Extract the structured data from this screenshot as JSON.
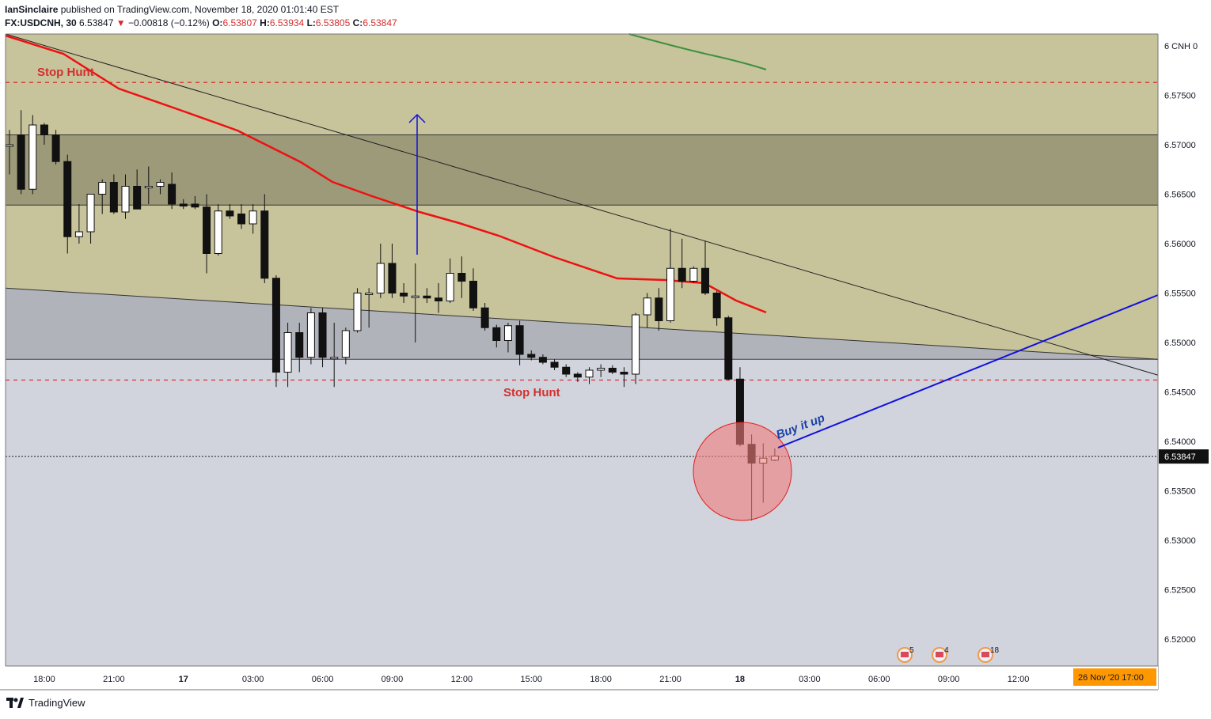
{
  "header": {
    "author": "IanSinclaire",
    "published_text": "published on TradingView.com, November 18, 2020 01:01:40 EST",
    "symbol": "FX:USDCNH, 30",
    "last_price": "6.53847",
    "change_arrow": "▼",
    "change": "−0.00818 (−0.12%)",
    "open_label": "O:",
    "open": "6.53807",
    "high_label": "H:",
    "high": "6.53934",
    "low_label": "L:",
    "low": "6.53805",
    "close_label": "C:",
    "close": "6.53847"
  },
  "footer": {
    "brand": "TradingView"
  },
  "colors": {
    "pane_bg": "#d1d4dc",
    "zone_upper": "#c7c39b",
    "zone_dark": "#9d9a7a",
    "zone_grey": "#b1b3bb",
    "ema_red": "#ee1111",
    "ema_green": "#3d9140",
    "blue_line": "#1111dd",
    "stop_hunt_red": "#d32f2f",
    "circle_fill": "#f07c7c",
    "date_tag_bg": "#ff9800"
  },
  "chart_data": {
    "type": "candlestick",
    "title": "FX:USDCNH, 30",
    "ylim": [
      6.515,
      6.581
    ],
    "y_ticks": [
      "6 CNH 0",
      "6.57500",
      "6.57000",
      "6.56500",
      "6.56000",
      "6.55500",
      "6.55000",
      "6.54500",
      "6.54000",
      "6.53500",
      "6.53000",
      "6.52500",
      "6.52000"
    ],
    "y_tick_values": [
      6.58,
      6.575,
      6.57,
      6.565,
      6.56,
      6.555,
      6.55,
      6.545,
      6.54,
      6.535,
      6.53,
      6.525,
      6.52
    ],
    "x_ticks": [
      "18:00",
      "21:00",
      "17",
      "03:00",
      "06:00",
      "09:00",
      "12:00",
      "15:00",
      "18:00",
      "21:00",
      "18",
      "03:00",
      "06:00",
      "09:00",
      "12:00"
    ],
    "x_tick_index": [
      3,
      9,
      15,
      21,
      27,
      33,
      39,
      45,
      51,
      57,
      63,
      69,
      75,
      81,
      87
    ],
    "current_price_label": "6.53847",
    "current_price": 6.53847,
    "date_tag": "26 Nov '20   17:00",
    "candles": [
      {
        "o": 6.57,
        "h": 6.5715,
        "l": 6.567,
        "c": 6.57
      },
      {
        "o": 6.571,
        "h": 6.5735,
        "l": 6.565,
        "c": 6.5655
      },
      {
        "o": 6.5655,
        "h": 6.573,
        "l": 6.565,
        "c": 6.572
      },
      {
        "o": 6.572,
        "h": 6.5722,
        "l": 6.57,
        "c": 6.571
      },
      {
        "o": 6.571,
        "h": 6.5715,
        "l": 6.568,
        "c": 6.5683
      },
      {
        "o": 6.5683,
        "h": 6.569,
        "l": 6.559,
        "c": 6.5607
      },
      {
        "o": 6.5607,
        "h": 6.564,
        "l": 6.56,
        "c": 6.5612
      },
      {
        "o": 6.5612,
        "h": 6.565,
        "l": 6.56,
        "c": 6.565
      },
      {
        "o": 6.565,
        "h": 6.5665,
        "l": 6.563,
        "c": 6.5662
      },
      {
        "o": 6.5662,
        "h": 6.567,
        "l": 6.563,
        "c": 6.5632
      },
      {
        "o": 6.5632,
        "h": 6.567,
        "l": 6.5625,
        "c": 6.5658
      },
      {
        "o": 6.5658,
        "h": 6.5675,
        "l": 6.5637,
        "c": 6.5635
      },
      {
        "o": 6.5657,
        "h": 6.5678,
        "l": 6.564,
        "c": 6.5658
      },
      {
        "o": 6.5658,
        "h": 6.5665,
        "l": 6.565,
        "c": 6.5662
      },
      {
        "o": 6.566,
        "h": 6.5672,
        "l": 6.5635,
        "c": 6.564
      },
      {
        "o": 6.564,
        "h": 6.5645,
        "l": 6.5635,
        "c": 6.5638
      },
      {
        "o": 6.564,
        "h": 6.5648,
        "l": 6.5635,
        "c": 6.5637
      },
      {
        "o": 6.5637,
        "h": 6.565,
        "l": 6.557,
        "c": 6.559
      },
      {
        "o": 6.559,
        "h": 6.564,
        "l": 6.5588,
        "c": 6.5633
      },
      {
        "o": 6.5633,
        "h": 6.564,
        "l": 6.5625,
        "c": 6.5628
      },
      {
        "o": 6.563,
        "h": 6.564,
        "l": 6.5615,
        "c": 6.562
      },
      {
        "o": 6.562,
        "h": 6.564,
        "l": 6.561,
        "c": 6.5633
      },
      {
        "o": 6.5633,
        "h": 6.565,
        "l": 6.556,
        "c": 6.5565
      },
      {
        "o": 6.5565,
        "h": 6.5568,
        "l": 6.5455,
        "c": 6.547
      },
      {
        "o": 6.547,
        "h": 6.552,
        "l": 6.5455,
        "c": 6.551
      },
      {
        "o": 6.551,
        "h": 6.552,
        "l": 6.547,
        "c": 6.5485
      },
      {
        "o": 6.5485,
        "h": 6.5535,
        "l": 6.5478,
        "c": 6.553
      },
      {
        "o": 6.553,
        "h": 6.5535,
        "l": 6.5475,
        "c": 6.5485
      },
      {
        "o": 6.5485,
        "h": 6.552,
        "l": 6.5455,
        "c": 6.5485
      },
      {
        "o": 6.5485,
        "h": 6.5515,
        "l": 6.5478,
        "c": 6.5512
      },
      {
        "o": 6.5512,
        "h": 6.5555,
        "l": 6.551,
        "c": 6.555
      },
      {
        "o": 6.555,
        "h": 6.5555,
        "l": 6.5515,
        "c": 6.555
      },
      {
        "o": 6.555,
        "h": 6.56,
        "l": 6.5545,
        "c": 6.558
      },
      {
        "o": 6.558,
        "h": 6.56,
        "l": 6.5545,
        "c": 6.555
      },
      {
        "o": 6.555,
        "h": 6.556,
        "l": 6.554,
        "c": 6.5547
      },
      {
        "o": 6.5547,
        "h": 6.558,
        "l": 6.55,
        "c": 6.5547
      },
      {
        "o": 6.5547,
        "h": 6.5555,
        "l": 6.554,
        "c": 6.5545
      },
      {
        "o": 6.5545,
        "h": 6.556,
        "l": 6.553,
        "c": 6.5542
      },
      {
        "o": 6.5542,
        "h": 6.5585,
        "l": 6.554,
        "c": 6.557
      },
      {
        "o": 6.557,
        "h": 6.5587,
        "l": 6.5545,
        "c": 6.5562
      },
      {
        "o": 6.5562,
        "h": 6.5575,
        "l": 6.5532,
        "c": 6.5535
      },
      {
        "o": 6.5535,
        "h": 6.554,
        "l": 6.5512,
        "c": 6.5515
      },
      {
        "o": 6.5515,
        "h": 6.5518,
        "l": 6.5495,
        "c": 6.5502
      },
      {
        "o": 6.5502,
        "h": 6.552,
        "l": 6.549,
        "c": 6.5517
      },
      {
        "o": 6.5517,
        "h": 6.5522,
        "l": 6.5477,
        "c": 6.5488
      },
      {
        "o": 6.5488,
        "h": 6.5492,
        "l": 6.5482,
        "c": 6.5485
      },
      {
        "o": 6.5485,
        "h": 6.5488,
        "l": 6.5478,
        "c": 6.548
      },
      {
        "o": 6.548,
        "h": 6.5483,
        "l": 6.5472,
        "c": 6.5475
      },
      {
        "o": 6.5475,
        "h": 6.5478,
        "l": 6.5465,
        "c": 6.5468
      },
      {
        "o": 6.5468,
        "h": 6.547,
        "l": 6.546,
        "c": 6.5465
      },
      {
        "o": 6.5465,
        "h": 6.5475,
        "l": 6.5458,
        "c": 6.5472
      },
      {
        "o": 6.5472,
        "h": 6.5478,
        "l": 6.5465,
        "c": 6.5474
      },
      {
        "o": 6.5474,
        "h": 6.5477,
        "l": 6.5468,
        "c": 6.547
      },
      {
        "o": 6.547,
        "h": 6.5475,
        "l": 6.5455,
        "c": 6.5468
      },
      {
        "o": 6.5468,
        "h": 6.553,
        "l": 6.5458,
        "c": 6.5528
      },
      {
        "o": 6.5528,
        "h": 6.555,
        "l": 6.5515,
        "c": 6.5545
      },
      {
        "o": 6.5545,
        "h": 6.5555,
        "l": 6.5512,
        "c": 6.5522
      },
      {
        "o": 6.5522,
        "h": 6.5615,
        "l": 6.552,
        "c": 6.5575
      },
      {
        "o": 6.5575,
        "h": 6.5605,
        "l": 6.5555,
        "c": 6.5562
      },
      {
        "o": 6.5562,
        "h": 6.5577,
        "l": 6.556,
        "c": 6.5575
      },
      {
        "o": 6.5575,
        "h": 6.5603,
        "l": 6.5548,
        "c": 6.555
      },
      {
        "o": 6.555,
        "h": 6.5552,
        "l": 6.5517,
        "c": 6.5525
      },
      {
        "o": 6.5525,
        "h": 6.5527,
        "l": 6.5462,
        "c": 6.5463
      },
      {
        "o": 6.5463,
        "h": 6.5475,
        "l": 6.5395,
        "c": 6.5397
      },
      {
        "o": 6.5397,
        "h": 6.5407,
        "l": 6.532,
        "c": 6.5378
      },
      {
        "o": 6.5378,
        "h": 6.5398,
        "l": 6.5338,
        "c": 6.5383
      },
      {
        "o": 6.5381,
        "h": 6.5393,
        "l": 6.538,
        "c": 6.5385
      }
    ],
    "annotations": {
      "stop_hunt_top": "Stop Hunt",
      "stop_hunt_mid": "Stop Hunt",
      "buy_text": "Buy it up",
      "event_badges": [
        "5",
        "4",
        "18"
      ]
    }
  }
}
